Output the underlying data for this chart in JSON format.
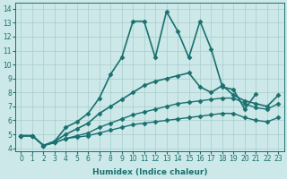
{
  "xlabel": "Humidex (Indice chaleur)",
  "bg_color": "#cce8e8",
  "line_color": "#1a7070",
  "grid_color": "#aacccc",
  "xlim": [
    -0.5,
    23.5
  ],
  "ylim": [
    3.8,
    14.4
  ],
  "yticks": [
    4,
    5,
    6,
    7,
    8,
    9,
    10,
    11,
    12,
    13,
    14
  ],
  "xticks": [
    0,
    1,
    2,
    3,
    4,
    5,
    6,
    7,
    8,
    9,
    10,
    11,
    12,
    13,
    14,
    15,
    16,
    17,
    18,
    19,
    20,
    21,
    22,
    23
  ],
  "series": [
    {
      "x": [
        0,
        1,
        2,
        3,
        4,
        5,
        6,
        7,
        8,
        9,
        10,
        11,
        12,
        13,
        14,
        15,
        16,
        17,
        18,
        19,
        20,
        21,
        22,
        23
      ],
      "y": [
        4.9,
        4.9,
        4.2,
        4.5,
        5.5,
        5.9,
        6.5,
        7.6,
        9.3,
        10.5,
        13.1,
        13.1,
        10.5,
        13.8,
        12.4,
        10.5,
        13.1,
        11.1,
        8.4,
        8.2,
        6.8,
        7.9,
        null,
        null
      ],
      "linewidth": 1.2,
      "marker": "D",
      "markersize": 2.5
    },
    {
      "x": [
        0,
        1,
        2,
        3,
        4,
        5,
        6,
        7,
        8,
        9,
        10,
        11,
        12,
        13,
        14,
        15,
        16,
        17,
        18,
        19,
        20,
        21,
        22,
        23
      ],
      "y": [
        4.9,
        4.9,
        4.2,
        4.5,
        5.0,
        5.4,
        5.8,
        6.5,
        7.0,
        7.5,
        8.0,
        8.5,
        8.8,
        9.0,
        9.2,
        9.4,
        8.4,
        8.0,
        8.5,
        7.8,
        7.4,
        7.2,
        7.0,
        7.8
      ],
      "linewidth": 1.2,
      "marker": "D",
      "markersize": 2.5
    },
    {
      "x": [
        0,
        1,
        2,
        3,
        4,
        5,
        6,
        7,
        8,
        9,
        10,
        11,
        12,
        13,
        14,
        15,
        16,
        17,
        18,
        19,
        20,
        21,
        22,
        23
      ],
      "y": [
        4.9,
        4.9,
        4.2,
        4.4,
        4.7,
        4.9,
        5.1,
        5.5,
        5.8,
        6.1,
        6.4,
        6.6,
        6.8,
        7.0,
        7.2,
        7.3,
        7.4,
        7.5,
        7.6,
        7.6,
        7.2,
        6.9,
        6.8,
        7.2
      ],
      "linewidth": 1.0,
      "marker": "D",
      "markersize": 2.5
    },
    {
      "x": [
        0,
        1,
        2,
        3,
        4,
        5,
        6,
        7,
        8,
        9,
        10,
        11,
        12,
        13,
        14,
        15,
        16,
        17,
        18,
        19,
        20,
        21,
        22,
        23
      ],
      "y": [
        4.9,
        4.9,
        4.2,
        4.4,
        4.7,
        4.8,
        4.9,
        5.1,
        5.3,
        5.5,
        5.7,
        5.8,
        5.9,
        6.0,
        6.1,
        6.2,
        6.3,
        6.4,
        6.5,
        6.5,
        6.2,
        6.0,
        5.9,
        6.2
      ],
      "linewidth": 1.0,
      "marker": "D",
      "markersize": 2.5
    }
  ]
}
